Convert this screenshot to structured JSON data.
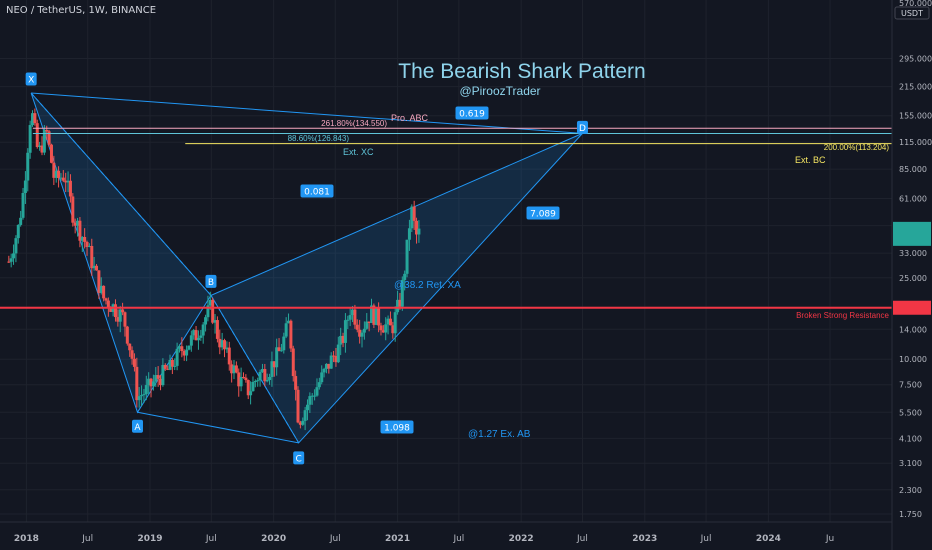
{
  "header": {
    "symbol_line": "NEO / TetherUS, 1W, BINANCE"
  },
  "axis": {
    "currency": "USDT",
    "price_ticks": [
      "295.000",
      "215.000",
      "155.000",
      "115.000",
      "85.000",
      "61.000",
      "45.000",
      "33.000",
      "25.000",
      "18.000",
      "14.000",
      "10.000",
      "7.500",
      "5.500",
      "4.100",
      "3.100",
      "2.300",
      "1.750"
    ],
    "top_tick": "570.000",
    "time_ticks": [
      "2018",
      "Jul",
      "2019",
      "Jul",
      "2020",
      "Jul",
      "2021",
      "Jul",
      "2022",
      "Jul",
      "2023",
      "Jul",
      "2024",
      "Ju"
    ]
  },
  "texts": {
    "title": "The Bearish Shark Pattern",
    "author": "@PiroozTrader",
    "pro_abc": "Pro. ABC",
    "ext_xc": "Ext. XC",
    "ext_bc": "Ext. BC",
    "fib_261": "261.80%(134.550)",
    "fib_886": "88.60%(126.843)",
    "fib_200": "200.00%(113.204)",
    "b_note": "@38.2 Ret. XA",
    "c_note": "@1.27 Ex. AB",
    "resistance": "Broken Strong Resistance",
    "current_price": "42.395",
    "countdown": "4d 15h",
    "resistance_price": "17.844"
  },
  "labels": {
    "x": "X",
    "a": "A",
    "b": "B",
    "c": "C",
    "d": "D",
    "r_xb": "0.081",
    "r_ac": "1.098",
    "r_xd": "0.619",
    "r_bd": "7.089"
  },
  "colors": {
    "background": "#131722",
    "pattern_line": "#2196f3",
    "pattern_fill": "#2196f3",
    "up": "#26a69a",
    "down": "#ef5350",
    "resistance": "#f23645",
    "title": "#8fd4ec",
    "fib_261": "#f7a8c0",
    "fib_886": "#5fc4d8",
    "fib_200": "#f5e663"
  },
  "chart_data": {
    "type": "candlestick",
    "symbol": "NEO / TetherUS",
    "interval": "1W",
    "exchange": "BINANCE",
    "y_scale": "log",
    "ylim": [
      1.6,
      570
    ],
    "xlim": [
      "2017-10-15",
      "2024-12-31"
    ],
    "pattern": {
      "name": "Bearish Shark",
      "points": [
        {
          "label": "X",
          "date": "2018-01-15",
          "price": 200
        },
        {
          "label": "A",
          "date": "2018-11-25",
          "price": 5.5
        },
        {
          "label": "B",
          "date": "2019-06-30",
          "price": 20.5
        },
        {
          "label": "C",
          "date": "2020-03-15",
          "price": 3.9
        },
        {
          "label": "D",
          "date": "2022-07-01",
          "price": 127
        }
      ]
    },
    "levels": [
      {
        "name": "Pro. ABC",
        "pct": "261.80%",
        "price": 134.55
      },
      {
        "name": "Ext. XC",
        "pct": "88.60%",
        "price": 126.843
      },
      {
        "name": "Ext. BC",
        "pct": "200.00%",
        "price": 113.204
      },
      {
        "name": "Broken Strong Resistance",
        "price": 17.844
      }
    ],
    "last_price": 42.395,
    "series": [
      {
        "date": "2017-11-10",
        "price": 30
      },
      {
        "date": "2017-12-10",
        "price": 45
      },
      {
        "date": "2017-12-25",
        "price": 70
      },
      {
        "date": "2018-01-15",
        "price": 170
      },
      {
        "date": "2018-02-05",
        "price": 100
      },
      {
        "date": "2018-03-01",
        "price": 130
      },
      {
        "date": "2018-03-25",
        "price": 75
      },
      {
        "date": "2018-04-25",
        "price": 80
      },
      {
        "date": "2018-05-20",
        "price": 50
      },
      {
        "date": "2018-07-01",
        "price": 35
      },
      {
        "date": "2018-08-15",
        "price": 20
      },
      {
        "date": "2018-09-15",
        "price": 18
      },
      {
        "date": "2018-10-15",
        "price": 16
      },
      {
        "date": "2018-11-10",
        "price": 10
      },
      {
        "date": "2018-11-25",
        "price": 6.5
      },
      {
        "date": "2018-12-20",
        "price": 7
      },
      {
        "date": "2019-01-20",
        "price": 8
      },
      {
        "date": "2019-03-01",
        "price": 9
      },
      {
        "date": "2019-04-01",
        "price": 11
      },
      {
        "date": "2019-05-15",
        "price": 13
      },
      {
        "date": "2019-06-30",
        "price": 18
      },
      {
        "date": "2019-07-20",
        "price": 13
      },
      {
        "date": "2019-08-20",
        "price": 10
      },
      {
        "date": "2019-09-20",
        "price": 8
      },
      {
        "date": "2019-10-20",
        "price": 7
      },
      {
        "date": "2019-11-20",
        "price": 8.5
      },
      {
        "date": "2019-12-20",
        "price": 9
      },
      {
        "date": "2020-01-20",
        "price": 11
      },
      {
        "date": "2020-02-15",
        "price": 15
      },
      {
        "date": "2020-03-15",
        "price": 5
      },
      {
        "date": "2020-04-20",
        "price": 6.5
      },
      {
        "date": "2020-05-20",
        "price": 8
      },
      {
        "date": "2020-06-20",
        "price": 10
      },
      {
        "date": "2020-07-20",
        "price": 12
      },
      {
        "date": "2020-08-15",
        "price": 18
      },
      {
        "date": "2020-09-15",
        "price": 14
      },
      {
        "date": "2020-10-15",
        "price": 17
      },
      {
        "date": "2020-11-15",
        "price": 15
      },
      {
        "date": "2020-12-15",
        "price": 14
      },
      {
        "date": "2021-01-10",
        "price": 20
      },
      {
        "date": "2021-01-25",
        "price": 30
      },
      {
        "date": "2021-02-10",
        "price": 55
      },
      {
        "date": "2021-02-25",
        "price": 40
      },
      {
        "date": "2021-03-10",
        "price": 42
      }
    ]
  }
}
